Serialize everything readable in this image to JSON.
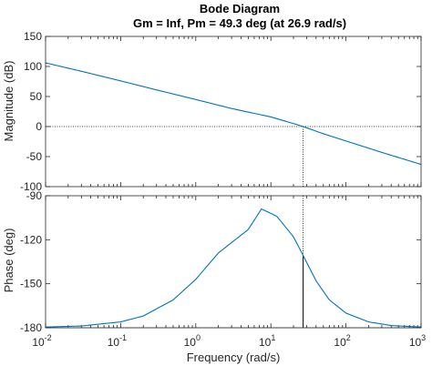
{
  "chart_data": {
    "type": "line",
    "title": "Bode Diagram",
    "subtitle": "Gm = Inf,  Pm = 49.3 deg (at 26.9 rad/s)",
    "xlabel": "Frequency  (rad/s)",
    "x_scale": "log",
    "xlim": [
      0.01,
      1000
    ],
    "x_ticks": [
      {
        "base": "10",
        "exp": "-2"
      },
      {
        "base": "10",
        "exp": "-1"
      },
      {
        "base": "10",
        "exp": "0"
      },
      {
        "base": "10",
        "exp": "1"
      },
      {
        "base": "10",
        "exp": "2"
      },
      {
        "base": "10",
        "exp": "3"
      }
    ],
    "grid": false,
    "crossover_frequency": 26.9,
    "subplots": [
      {
        "name": "magnitude",
        "ylabel": "Magnitude (dB)",
        "ylim": [
          -100,
          150
        ],
        "y_ticks": [
          "150",
          "100",
          "50",
          "0",
          "-50",
          "-100"
        ],
        "reference_line": 0,
        "series": [
          {
            "color": "#0072bd",
            "x": [
              0.01,
              0.03,
              0.1,
              0.3,
              1,
              3,
              10,
              20,
              26.9,
              50,
              100,
              300,
              1000
            ],
            "y": [
              106,
              92,
              76,
              61,
              45,
              30,
              16,
              5,
              0,
              -12,
              -24,
              -43,
              -63
            ]
          }
        ]
      },
      {
        "name": "phase",
        "ylabel": "Phase (deg)",
        "ylim": [
          -180,
          -90
        ],
        "y_ticks": [
          "-90",
          "-120",
          "-150",
          "-180"
        ],
        "reference_line": -180,
        "series": [
          {
            "color": "#0072bd",
            "x": [
              0.01,
              0.03,
              0.1,
              0.2,
              0.5,
              1,
              2,
              5,
              7.5,
              12,
              20,
              26.9,
              40,
              60,
              100,
              200,
              400,
              1000
            ],
            "y": [
              -179.5,
              -178.8,
              -176,
              -172,
              -161,
              -147,
              -129,
              -113,
              -99,
              -104,
              -118,
              -130.7,
              -148,
              -161,
              -170,
              -176,
              -178.5,
              -179.5
            ]
          }
        ]
      }
    ]
  }
}
